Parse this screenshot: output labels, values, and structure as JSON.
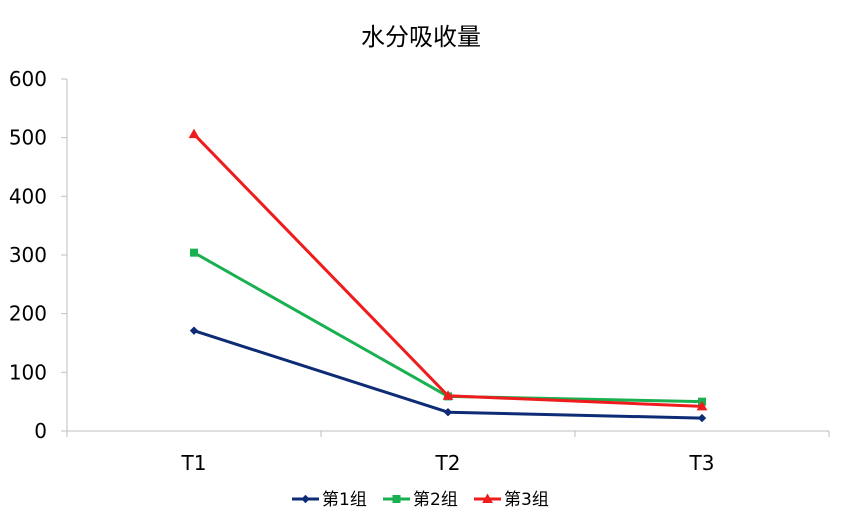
{
  "chart_data": {
    "type": "line",
    "title": "水分吸收量",
    "xlabel": "",
    "ylabel": "",
    "categories": [
      "T1",
      "T2",
      "T3"
    ],
    "ylim": [
      0,
      600
    ],
    "yticks": [
      0,
      100,
      200,
      300,
      400,
      500,
      600
    ],
    "grid": false,
    "legend_position": "bottom",
    "series": [
      {
        "name": "第1组",
        "color": "#0E2C75",
        "marker": "diamond",
        "values": [
          171,
          32,
          22
        ]
      },
      {
        "name": "第2组",
        "color": "#19B050",
        "marker": "square",
        "values": [
          304,
          59,
          50
        ]
      },
      {
        "name": "第3组",
        "color": "#EE1C1C",
        "marker": "triangle",
        "values": [
          506,
          60,
          42
        ]
      }
    ]
  }
}
